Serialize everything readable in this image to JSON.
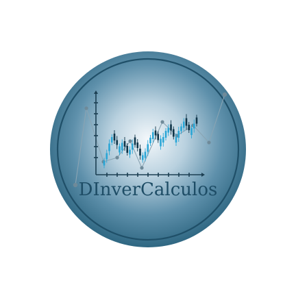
{
  "logo": {
    "brand_name": "DInverCalculos",
    "colors": {
      "disc_outer": "#2f6782",
      "disc_mid": "#6a9cb6",
      "disc_center": "#f4f8fb",
      "ring": "#1f4f68",
      "text": "#1e4d66",
      "candle_up": "#2aa6d6",
      "candle_down": "#0e3448",
      "connector_line": "#8aa4b3",
      "connector_dot": "#6f8a99",
      "axis": "#1c3f52"
    },
    "icons": [
      "candlestick-chart-icon",
      "axis-icon"
    ]
  }
}
